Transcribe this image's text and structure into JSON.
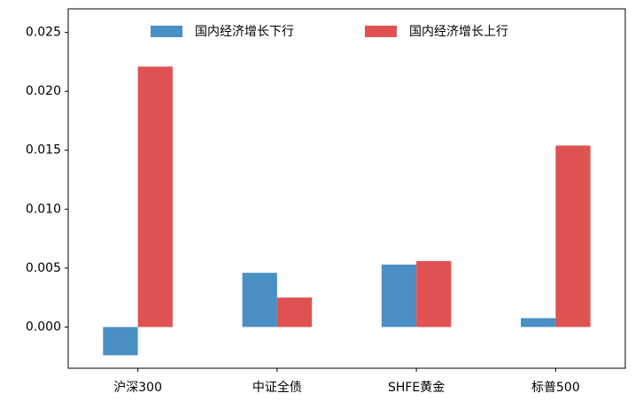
{
  "chart_data": {
    "type": "bar",
    "categories": [
      "沪深300",
      "中证全债",
      "SHFE黄金",
      "标普500"
    ],
    "series": [
      {
        "name": "国内经济增长下行",
        "color": "#4a90c4",
        "values": [
          -0.0024,
          0.0046,
          0.0053,
          0.00075
        ]
      },
      {
        "name": "国内经济增长上行",
        "color": "#e05252",
        "values": [
          0.0221,
          0.0025,
          0.0056,
          0.0154
        ]
      }
    ],
    "ylim": [
      -0.0035,
      0.027
    ],
    "yticks": [
      {
        "value": 0,
        "label": "0.000"
      },
      {
        "value": 0.005,
        "label": "0.005"
      },
      {
        "value": 0.01,
        "label": "0.010"
      },
      {
        "value": 0.015,
        "label": "0.015"
      },
      {
        "value": 0.02,
        "label": "0.020"
      },
      {
        "value": 0.025,
        "label": "0.025"
      }
    ],
    "legend": "upper center"
  }
}
